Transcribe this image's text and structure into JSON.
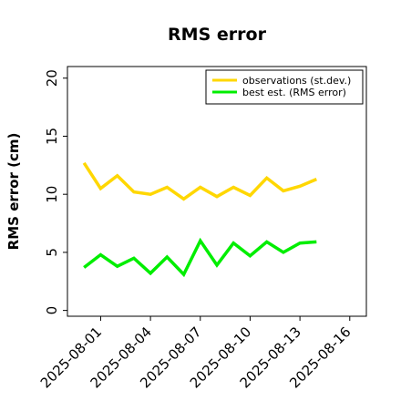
{
  "chart_data": {
    "type": "line",
    "title": "RMS error",
    "xlabel": "",
    "ylabel": "RMS error (cm)",
    "ylim": [
      -0.5,
      21
    ],
    "yticks": [
      0,
      5,
      10,
      15,
      20
    ],
    "ytick_labels": [
      "0",
      "5",
      "10",
      "15",
      "20"
    ],
    "xtick_labels": [
      "2025-08-01",
      "2025-08-04",
      "2025-08-07",
      "2025-08-10",
      "2025-08-13",
      "2025-08-16"
    ],
    "xtick_colors": [
      "#000000",
      "#000000",
      "#228B22",
      "#000000",
      "#000000",
      "#000000"
    ],
    "x": [
      "2025-07-31",
      "2025-08-01",
      "2025-08-02",
      "2025-08-03",
      "2025-08-04",
      "2025-08-05",
      "2025-08-06",
      "2025-08-07",
      "2025-08-08",
      "2025-08-09",
      "2025-08-10",
      "2025-08-11",
      "2025-08-12",
      "2025-08-13",
      "2025-08-14"
    ],
    "xlim": [
      "2025-07-30",
      "2025-08-17"
    ],
    "series": [
      {
        "name": "observations (st.dev.)",
        "color": "#FFD700",
        "values": [
          12.7,
          10.5,
          11.6,
          10.2,
          10.0,
          10.6,
          9.6,
          10.6,
          9.8,
          10.6,
          9.9,
          11.4,
          10.3,
          10.7,
          11.3
        ]
      },
      {
        "name": "best est. (RMS error)",
        "color": "#00EE00",
        "values": [
          3.7,
          4.8,
          3.8,
          4.5,
          3.2,
          4.6,
          3.1,
          6.0,
          3.9,
          5.8,
          4.7,
          5.9,
          5.0,
          5.8,
          5.9
        ]
      }
    ],
    "legend_position": "top-right",
    "grid": false
  }
}
